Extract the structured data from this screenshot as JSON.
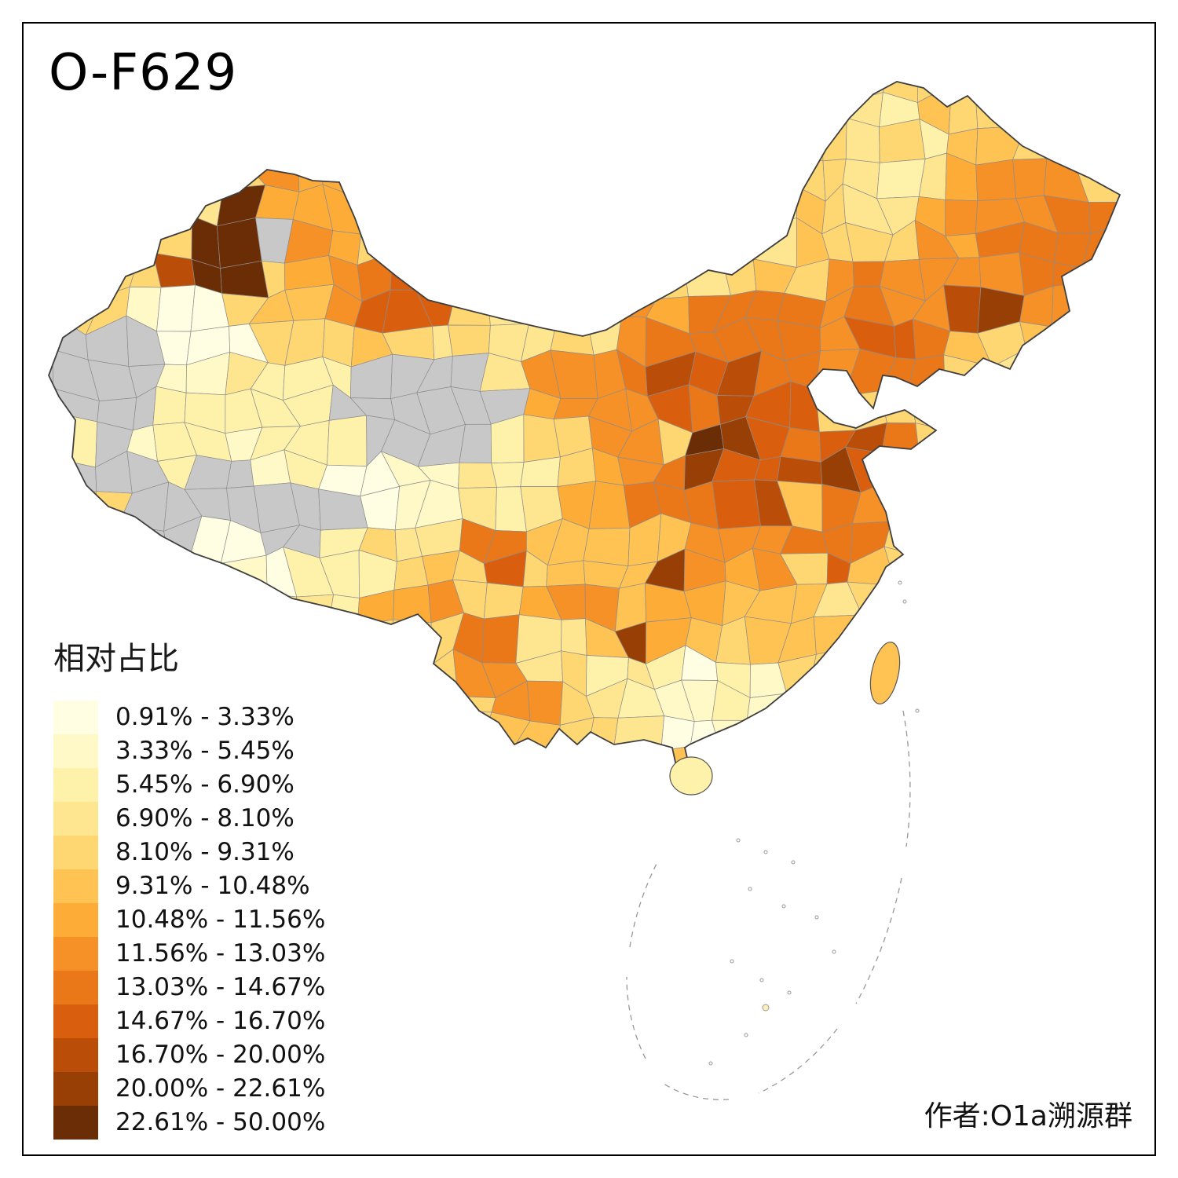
{
  "title": "O-F629",
  "legend": {
    "title": "相对占比",
    "items": [
      {
        "label": "0.91% - 3.33%",
        "color": "#FFFEE3"
      },
      {
        "label": "3.33% - 5.45%",
        "color": "#FFF9C7"
      },
      {
        "label": "5.45% - 6.90%",
        "color": "#FEF1A9"
      },
      {
        "label": "6.90% - 8.10%",
        "color": "#FEE590"
      },
      {
        "label": "8.10% - 9.31%",
        "color": "#FED772"
      },
      {
        "label": "9.31% - 10.48%",
        "color": "#FEC353"
      },
      {
        "label": "10.48% - 11.56%",
        "color": "#FDAC38"
      },
      {
        "label": "11.56% - 13.03%",
        "color": "#F69127"
      },
      {
        "label": "13.03% - 14.67%",
        "color": "#EA7718"
      },
      {
        "label": "14.67% - 16.70%",
        "color": "#D95F0E"
      },
      {
        "label": "16.70% - 20.00%",
        "color": "#BA4D08"
      },
      {
        "label": "20.00% - 22.61%",
        "color": "#973F05"
      },
      {
        "label": "22.61% - 50.00%",
        "color": "#6B2D05"
      }
    ]
  },
  "map": {
    "no_data_color": "#C8C8C8",
    "border_color": "#3F3F3F",
    "background": "#FFFFFF"
  },
  "attribution": "作者:O1a溯源群"
}
